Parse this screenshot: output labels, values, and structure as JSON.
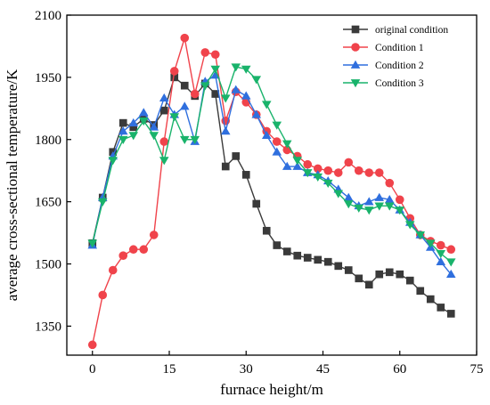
{
  "chart_data": {
    "type": "line",
    "title": "",
    "xlabel": "furnace height/m",
    "ylabel": "average cross-sectional temperature/K",
    "xlim": [
      -5,
      75
    ],
    "ylim": [
      1280,
      2100
    ],
    "xticks": [
      0,
      15,
      30,
      45,
      60,
      75
    ],
    "yticks": [
      1350,
      1500,
      1650,
      1800,
      1950,
      2100
    ],
    "grid": false,
    "legend_position": "top-right",
    "series": [
      {
        "name": "original condition",
        "color": "#3a3a3a",
        "marker": "square",
        "x": [
          0,
          2,
          4,
          6,
          8,
          10,
          12,
          14,
          16,
          18,
          20,
          22,
          24,
          26,
          28,
          30,
          32,
          34,
          36,
          38,
          40,
          42,
          44,
          46,
          48,
          50,
          52,
          54,
          56,
          58,
          60,
          62,
          64,
          66,
          68,
          70
        ],
        "y": [
          1550,
          1660,
          1770,
          1840,
          1830,
          1850,
          1835,
          1870,
          1950,
          1930,
          1905,
          1935,
          1910,
          1735,
          1760,
          1715,
          1645,
          1580,
          1545,
          1530,
          1520,
          1515,
          1510,
          1505,
          1495,
          1485,
          1465,
          1450,
          1475,
          1480,
          1475,
          1460,
          1435,
          1415,
          1395,
          1380
        ]
      },
      {
        "name": "Condition 1",
        "color": "#f0434b",
        "marker": "circle",
        "x": [
          0,
          2,
          4,
          6,
          8,
          10,
          12,
          14,
          16,
          18,
          20,
          22,
          24,
          26,
          28,
          30,
          32,
          34,
          36,
          38,
          40,
          42,
          44,
          46,
          48,
          50,
          52,
          54,
          56,
          58,
          60,
          62,
          64,
          66,
          68,
          70
        ],
        "y": [
          1305,
          1425,
          1485,
          1520,
          1535,
          1535,
          1570,
          1795,
          1965,
          2045,
          1910,
          2010,
          2005,
          1845,
          1915,
          1890,
          1860,
          1820,
          1795,
          1775,
          1760,
          1740,
          1730,
          1725,
          1720,
          1745,
          1725,
          1720,
          1720,
          1695,
          1655,
          1610,
          1570,
          1555,
          1545,
          1535
        ]
      },
      {
        "name": "Condition 2",
        "color": "#2f6fde",
        "marker": "triangle-up",
        "x": [
          0,
          2,
          4,
          6,
          8,
          10,
          12,
          14,
          16,
          18,
          20,
          22,
          24,
          26,
          28,
          30,
          32,
          34,
          36,
          38,
          40,
          42,
          44,
          46,
          48,
          50,
          52,
          54,
          56,
          58,
          60,
          62,
          64,
          66,
          68,
          70
        ],
        "y": [
          1545,
          1660,
          1760,
          1820,
          1840,
          1865,
          1830,
          1900,
          1860,
          1880,
          1795,
          1940,
          1955,
          1820,
          1920,
          1905,
          1860,
          1810,
          1770,
          1735,
          1735,
          1720,
          1715,
          1700,
          1680,
          1660,
          1640,
          1650,
          1660,
          1655,
          1630,
          1600,
          1570,
          1540,
          1505,
          1475
        ]
      },
      {
        "name": "Condition 3",
        "color": "#19b36b",
        "marker": "triangle-down",
        "x": [
          0,
          2,
          4,
          6,
          8,
          10,
          12,
          14,
          16,
          18,
          20,
          22,
          24,
          26,
          28,
          30,
          32,
          34,
          36,
          38,
          40,
          42,
          44,
          46,
          48,
          50,
          52,
          54,
          56,
          58,
          60,
          62,
          64,
          66,
          68,
          70
        ],
        "y": [
          1550,
          1650,
          1750,
          1800,
          1810,
          1845,
          1810,
          1750,
          1855,
          1800,
          1800,
          1930,
          1970,
          1900,
          1975,
          1970,
          1945,
          1885,
          1835,
          1790,
          1750,
          1720,
          1710,
          1695,
          1670,
          1645,
          1635,
          1630,
          1640,
          1640,
          1630,
          1595,
          1570,
          1550,
          1525,
          1505
        ]
      }
    ]
  }
}
